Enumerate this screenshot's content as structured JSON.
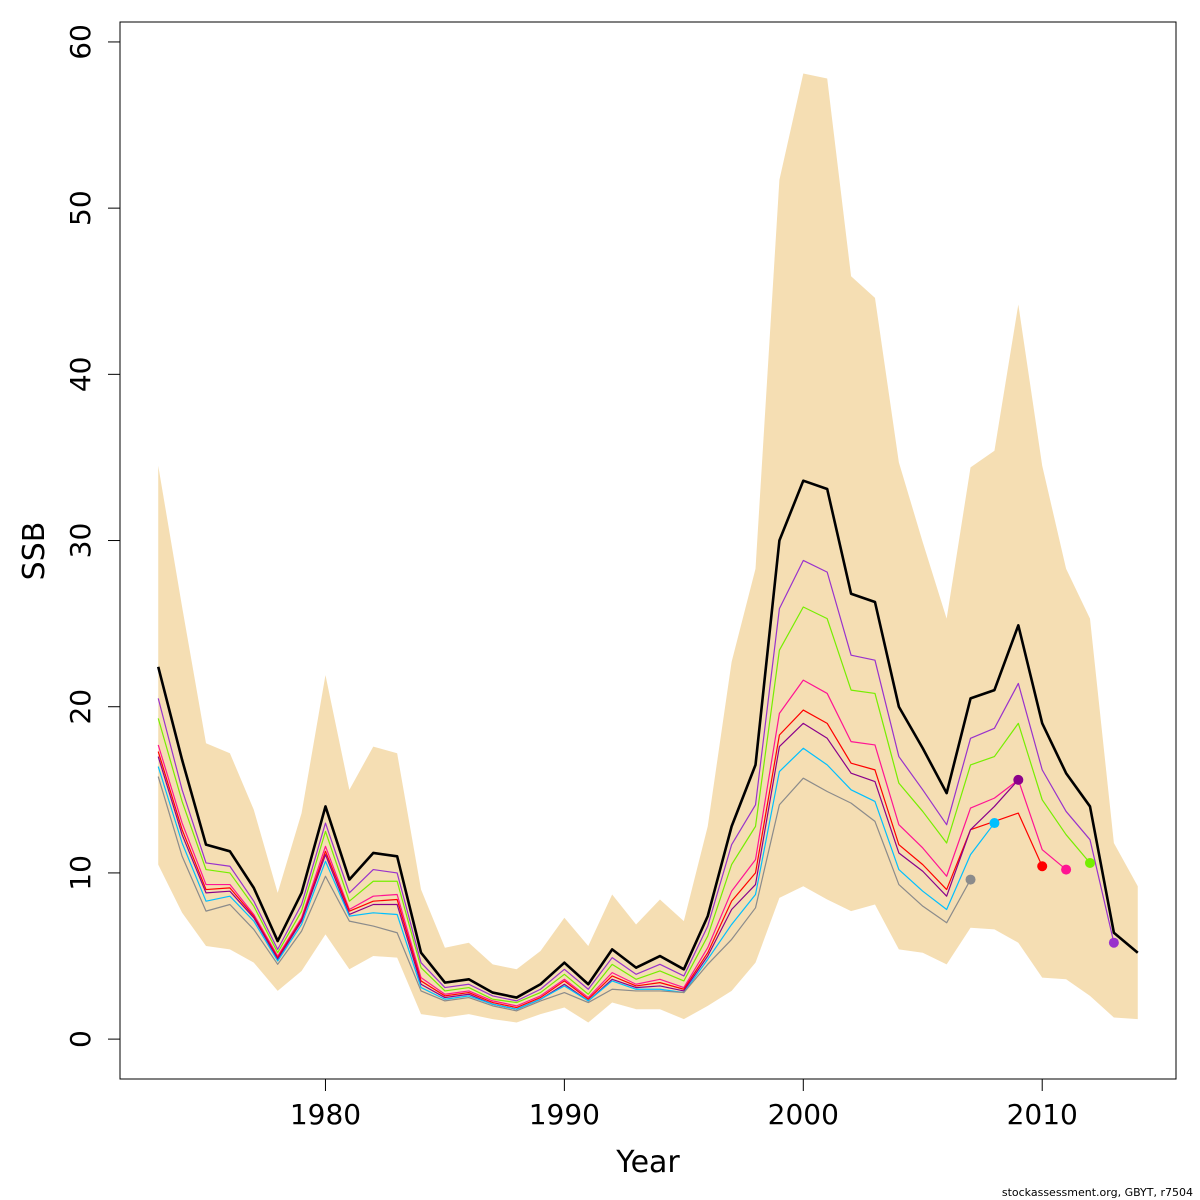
{
  "chart_data": {
    "type": "line",
    "xlabel": "Year",
    "ylabel": "SSB",
    "xlim": [
      1971.4,
      2015.6
    ],
    "ylim": [
      -2.4,
      61.2
    ],
    "x_ticks": [
      1980,
      1990,
      2000,
      2010
    ],
    "y_ticks": [
      0,
      10,
      20,
      30,
      40,
      50,
      60
    ],
    "x_tick_labels": [
      "1980",
      "1990",
      "2000",
      "2010"
    ],
    "y_tick_labels": [
      "0",
      "10",
      "20",
      "30",
      "40",
      "50",
      "60"
    ],
    "grid": false,
    "confidence_band": {
      "color": "#f5deb3",
      "x": [
        1973,
        1974,
        1975,
        1976,
        1977,
        1978,
        1979,
        1980,
        1981,
        1982,
        1983,
        1984,
        1985,
        1986,
        1987,
        1988,
        1989,
        1990,
        1991,
        1992,
        1993,
        1994,
        1995,
        1996,
        1997,
        1998,
        1999,
        2000,
        2001,
        2002,
        2003,
        2004,
        2005,
        2006,
        2007,
        2008,
        2009,
        2010,
        2011,
        2012,
        2013,
        2014
      ],
      "upper": [
        34.5,
        26.0,
        17.8,
        17.2,
        13.8,
        8.8,
        13.6,
        21.9,
        15.0,
        17.6,
        17.2,
        9.0,
        5.5,
        5.8,
        4.5,
        4.2,
        5.3,
        7.3,
        5.6,
        8.7,
        6.9,
        8.4,
        7.1,
        12.8,
        22.7,
        28.3,
        51.7,
        58.1,
        57.8,
        45.9,
        44.6,
        34.7,
        29.9,
        25.3,
        34.4,
        35.4,
        44.2,
        34.5,
        28.3,
        25.3,
        11.8,
        9.2
      ],
      "lower": [
        10.5,
        7.6,
        5.6,
        5.4,
        4.6,
        2.9,
        4.1,
        6.3,
        4.2,
        5.0,
        4.9,
        1.5,
        1.3,
        1.5,
        1.2,
        1.0,
        1.5,
        1.9,
        1.0,
        2.2,
        1.8,
        1.8,
        1.2,
        2.0,
        2.9,
        4.6,
        8.5,
        9.2,
        8.4,
        7.7,
        8.1,
        5.4,
        5.2,
        4.5,
        6.7,
        6.6,
        5.8,
        3.7,
        3.6,
        2.6,
        1.3,
        1.2
      ]
    },
    "series": [
      {
        "color": "#000000",
        "width": 2.6,
        "marker": false,
        "x": [
          1973,
          1974,
          1975,
          1976,
          1977,
          1978,
          1979,
          1980,
          1981,
          1982,
          1983,
          1984,
          1985,
          1986,
          1987,
          1988,
          1989,
          1990,
          1991,
          1992,
          1993,
          1994,
          1995,
          1996,
          1997,
          1998,
          1999,
          2000,
          2001,
          2002,
          2003,
          2004,
          2005,
          2006,
          2007,
          2008,
          2009,
          2010,
          2011,
          2012,
          2013,
          2014
        ],
        "values": [
          22.4,
          16.8,
          11.7,
          11.3,
          9.1,
          5.9,
          8.8,
          14.0,
          9.6,
          11.2,
          11.0,
          5.2,
          3.4,
          3.6,
          2.8,
          2.5,
          3.3,
          4.6,
          3.3,
          5.4,
          4.3,
          5.0,
          4.2,
          7.4,
          12.8,
          16.5,
          30.0,
          33.6,
          33.1,
          26.8,
          26.3,
          20.0,
          17.5,
          14.8,
          20.5,
          21.0,
          24.9,
          19.0,
          16.0,
          14.0,
          6.4,
          5.2
        ]
      },
      {
        "color": "#9932cc",
        "width": 1.2,
        "marker": true,
        "x": [
          1973,
          1974,
          1975,
          1976,
          1977,
          1978,
          1979,
          1980,
          1981,
          1982,
          1983,
          1984,
          1985,
          1986,
          1987,
          1988,
          1989,
          1990,
          1991,
          1992,
          1993,
          1994,
          1995,
          1996,
          1997,
          1998,
          1999,
          2000,
          2001,
          2002,
          2003,
          2004,
          2005,
          2006,
          2007,
          2008,
          2009,
          2010,
          2011,
          2012,
          2013
        ],
        "values": [
          20.5,
          15.0,
          10.6,
          10.4,
          8.3,
          5.4,
          8.1,
          13.0,
          8.8,
          10.2,
          10.0,
          4.6,
          3.1,
          3.3,
          2.6,
          2.3,
          3.0,
          4.2,
          3.0,
          4.9,
          3.9,
          4.5,
          3.8,
          6.8,
          11.7,
          14.1,
          25.9,
          28.8,
          28.1,
          23.1,
          22.8,
          17.0,
          15.0,
          12.9,
          18.1,
          18.7,
          21.4,
          16.2,
          13.7,
          12.0,
          5.8
        ]
      },
      {
        "color": "#76ee00",
        "width": 1.2,
        "marker": true,
        "x": [
          1973,
          1974,
          1975,
          1976,
          1977,
          1978,
          1979,
          1980,
          1981,
          1982,
          1983,
          1984,
          1985,
          1986,
          1987,
          1988,
          1989,
          1990,
          1991,
          1992,
          1993,
          1994,
          1995,
          1996,
          1997,
          1998,
          1999,
          2000,
          2001,
          2002,
          2003,
          2004,
          2005,
          2006,
          2007,
          2008,
          2009,
          2010,
          2011,
          2012
        ],
        "values": [
          19.3,
          14.3,
          10.2,
          10.0,
          8.0,
          5.2,
          7.7,
          12.5,
          8.3,
          9.5,
          9.5,
          4.3,
          2.9,
          3.1,
          2.4,
          2.2,
          2.8,
          3.9,
          2.7,
          4.5,
          3.6,
          4.1,
          3.5,
          6.2,
          10.5,
          12.8,
          23.4,
          26.0,
          25.3,
          21.0,
          20.8,
          15.4,
          13.7,
          11.8,
          16.5,
          17.0,
          19.0,
          14.4,
          12.3,
          10.6
        ]
      },
      {
        "color": "#ff1493",
        "width": 1.2,
        "marker": true,
        "x": [
          1973,
          1974,
          1975,
          1976,
          1977,
          1978,
          1979,
          1980,
          1981,
          1982,
          1983,
          1984,
          1985,
          1986,
          1987,
          1988,
          1989,
          1990,
          1991,
          1992,
          1993,
          1994,
          1995,
          1996,
          1997,
          1998,
          1999,
          2000,
          2001,
          2002,
          2003,
          2004,
          2005,
          2006,
          2007,
          2008,
          2009,
          2010,
          2011
        ],
        "values": [
          17.7,
          13.0,
          9.3,
          9.3,
          7.5,
          5.0,
          7.3,
          11.6,
          7.8,
          8.6,
          8.7,
          3.7,
          2.7,
          2.9,
          2.3,
          2.0,
          2.6,
          3.6,
          2.5,
          4.0,
          3.3,
          3.6,
          3.1,
          5.5,
          8.9,
          10.8,
          19.6,
          21.6,
          20.8,
          17.9,
          17.7,
          12.9,
          11.5,
          9.8,
          13.9,
          14.5,
          15.6,
          11.4,
          10.2
        ]
      },
      {
        "color": "#ff0000",
        "width": 1.2,
        "marker": true,
        "x": [
          1973,
          1974,
          1975,
          1976,
          1977,
          1978,
          1979,
          1980,
          1981,
          1982,
          1983,
          1984,
          1985,
          1986,
          1987,
          1988,
          1989,
          1990,
          1991,
          1992,
          1993,
          1994,
          1995,
          1996,
          1997,
          1998,
          1999,
          2000,
          2001,
          2002,
          2003,
          2004,
          2005,
          2006,
          2007,
          2008,
          2009,
          2010
        ],
        "values": [
          17.3,
          12.6,
          9.0,
          9.1,
          7.4,
          4.9,
          7.2,
          11.3,
          7.7,
          8.3,
          8.4,
          3.5,
          2.6,
          2.8,
          2.2,
          1.9,
          2.5,
          3.5,
          2.4,
          3.8,
          3.2,
          3.4,
          3.0,
          5.2,
          8.3,
          10.0,
          18.3,
          19.8,
          19.0,
          16.6,
          16.2,
          11.7,
          10.5,
          9.0,
          12.6,
          13.1,
          13.6,
          10.4
        ]
      },
      {
        "color": "#8b008b",
        "width": 1.2,
        "marker": true,
        "x": [
          1973,
          1974,
          1975,
          1976,
          1977,
          1978,
          1979,
          1980,
          1981,
          1982,
          1983,
          1984,
          1985,
          1986,
          1987,
          1988,
          1989,
          1990,
          1991,
          1992,
          1993,
          1994,
          1995,
          1996,
          1997,
          1998,
          1999,
          2000,
          2001,
          2002,
          2003,
          2004,
          2005,
          2006,
          2007,
          2008,
          2009
        ],
        "values": [
          17.0,
          12.3,
          8.8,
          8.9,
          7.3,
          4.8,
          7.1,
          11.1,
          7.5,
          8.1,
          8.1,
          3.3,
          2.5,
          2.7,
          2.1,
          1.8,
          2.4,
          3.3,
          2.3,
          3.6,
          3.1,
          3.2,
          2.9,
          5.0,
          7.8,
          9.3,
          17.6,
          19.0,
          18.1,
          16.0,
          15.5,
          11.2,
          10.1,
          8.6,
          12.6,
          14.0,
          15.6
        ]
      },
      {
        "color": "#00bfff",
        "width": 1.2,
        "marker": true,
        "x": [
          1973,
          1974,
          1975,
          1976,
          1977,
          1978,
          1979,
          1980,
          1981,
          1982,
          1983,
          1984,
          1985,
          1986,
          1987,
          1988,
          1989,
          1990,
          1991,
          1992,
          1993,
          1994,
          1995,
          1996,
          1997,
          1998,
          1999,
          2000,
          2001,
          2002,
          2003,
          2004,
          2005,
          2006,
          2007,
          2008
        ],
        "values": [
          16.4,
          11.8,
          8.3,
          8.6,
          7.1,
          4.7,
          6.9,
          10.7,
          7.4,
          7.6,
          7.5,
          3.1,
          2.4,
          2.6,
          2.1,
          1.8,
          2.4,
          3.2,
          2.3,
          3.5,
          3.0,
          3.0,
          2.8,
          4.8,
          6.9,
          8.7,
          16.1,
          17.5,
          16.5,
          15.0,
          14.3,
          10.2,
          8.9,
          7.8,
          11.1,
          13.0
        ]
      },
      {
        "color": "#8b8b8b",
        "width": 1.2,
        "marker": true,
        "x": [
          1973,
          1974,
          1975,
          1976,
          1977,
          1978,
          1979,
          1980,
          1981,
          1982,
          1983,
          1984,
          1985,
          1986,
          1987,
          1988,
          1989,
          1990,
          1991,
          1992,
          1993,
          1994,
          1995,
          1996,
          1997,
          1998,
          1999,
          2000,
          2001,
          2002,
          2003,
          2004,
          2005,
          2006,
          2007
        ],
        "values": [
          15.8,
          11.0,
          7.7,
          8.1,
          6.6,
          4.5,
          6.5,
          9.8,
          7.1,
          6.8,
          6.4,
          2.9,
          2.3,
          2.5,
          2.0,
          1.7,
          2.3,
          2.8,
          2.2,
          3.0,
          2.9,
          2.9,
          2.8,
          4.5,
          6.0,
          7.9,
          14.1,
          15.7,
          14.9,
          14.2,
          13.1,
          9.3,
          8.0,
          7.0,
          9.6
        ]
      }
    ]
  },
  "footer": {
    "credit": "stockassessment.org, GBYT, r7504"
  }
}
